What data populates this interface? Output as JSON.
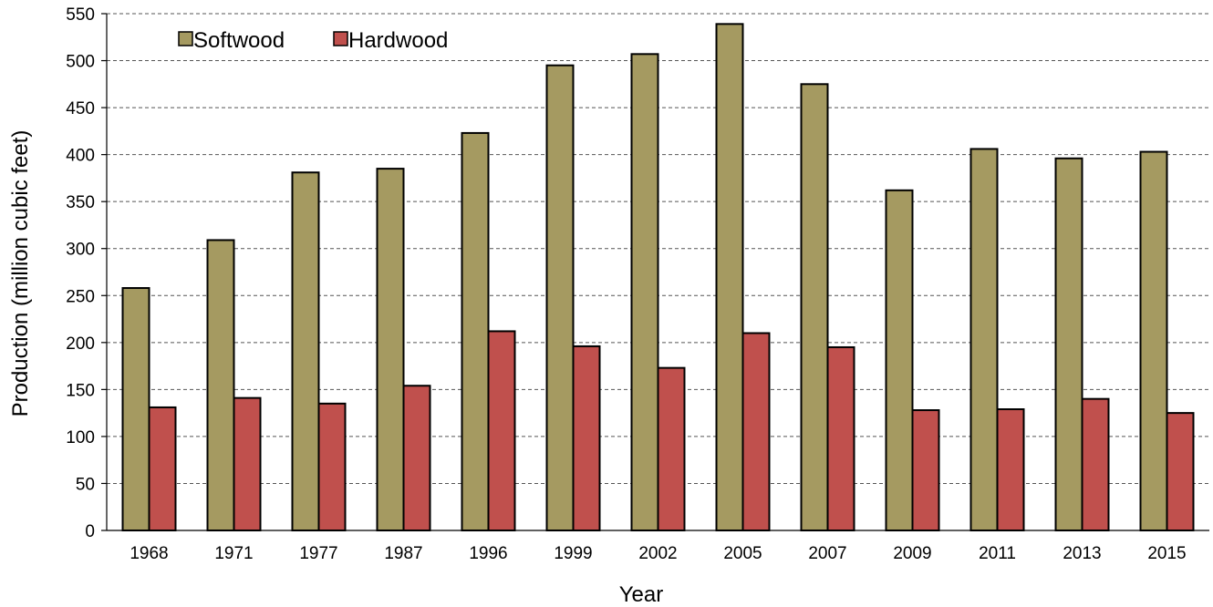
{
  "chart_data": {
    "type": "bar",
    "xlabel": "Year",
    "ylabel": "Production (million cubic feet)",
    "ylim": [
      0,
      550
    ],
    "yticks": [
      0,
      50,
      100,
      150,
      200,
      250,
      300,
      350,
      400,
      450,
      500,
      550
    ],
    "categories": [
      "1968",
      "1971",
      "1977",
      "1987",
      "1996",
      "1999",
      "2002",
      "2005",
      "2007",
      "2009",
      "2011",
      "2013",
      "2015"
    ],
    "series": [
      {
        "name": "Softwood",
        "color": "#a59a61",
        "values": [
          258,
          309,
          381,
          385,
          423,
          495,
          507,
          539,
          475,
          362,
          406,
          396,
          403
        ]
      },
      {
        "name": "Hardwood",
        "color": "#c0504d",
        "values": [
          131,
          141,
          135,
          154,
          212,
          196,
          173,
          210,
          195,
          128,
          129,
          140,
          125
        ]
      }
    ],
    "grid": true,
    "legend_position": "top-left"
  }
}
